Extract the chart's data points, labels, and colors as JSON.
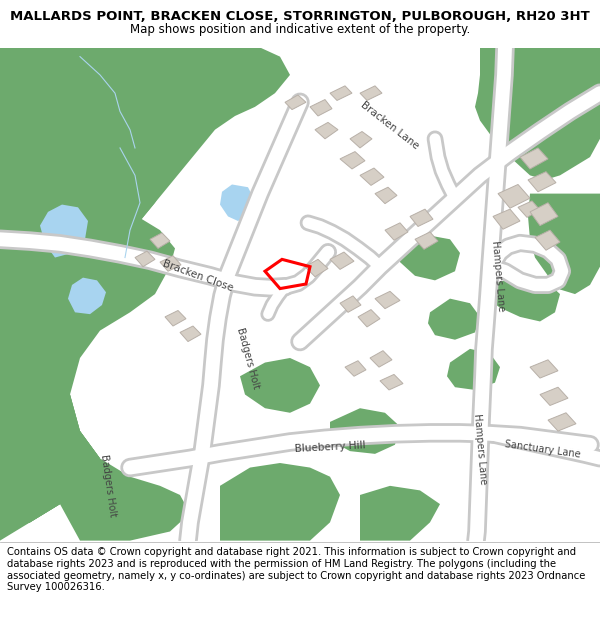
{
  "title": "MALLARDS POINT, BRACKEN CLOSE, STORRINGTON, PULBOROUGH, RH20 3HT",
  "subtitle": "Map shows position and indicative extent of the property.",
  "footer": "Contains OS data © Crown copyright and database right 2021. This information is subject to Crown copyright and database rights 2023 and is reproduced with the permission of HM Land Registry. The polygons (including the associated geometry, namely x, y co-ordinates) are subject to Crown copyright and database rights 2023 Ordnance Survey 100026316.",
  "bg_color": "#f0ede6",
  "road_color": "#ffffff",
  "road_outline_color": "#c8c8c8",
  "green_color": "#6daa6d",
  "water_color": "#a8d4f0",
  "building_color": "#d6cfc6",
  "building_outline": "#b8b0a8",
  "highlight_color": "#ff0000",
  "map_bg": "#f0ede6",
  "title_fontsize": 9.5,
  "subtitle_fontsize": 8.5,
  "footer_fontsize": 7.2
}
